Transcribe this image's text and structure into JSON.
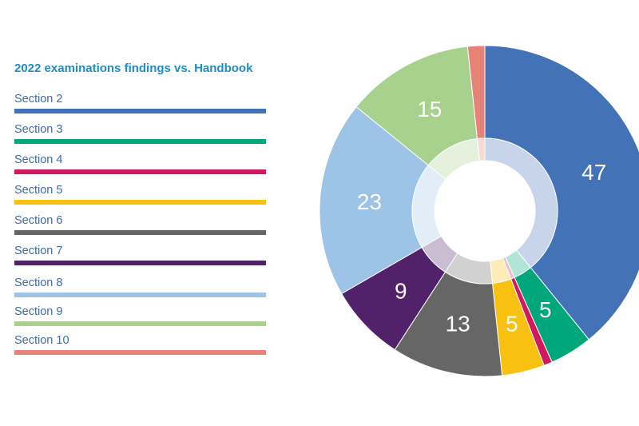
{
  "chart_data": {
    "type": "pie",
    "title": "2022 examinations findings vs. Handbook",
    "categories": [
      "Section 2",
      "Section 3",
      "Section 4",
      "Section 5",
      "Section 6",
      "Section 7",
      "Section 8",
      "Section 9",
      "Section 10"
    ],
    "values": [
      47,
      5,
      1,
      5,
      13,
      9,
      23,
      15,
      2
    ],
    "labels": [
      "47",
      "5",
      "",
      "5",
      "13",
      "9",
      "23",
      "15",
      ""
    ],
    "colors": [
      "#4472b6",
      "#00a77a",
      "#d4185e",
      "#f9c10f",
      "#666666",
      "#51226a",
      "#9dc3e6",
      "#a9d18e",
      "#e68378"
    ],
    "legend_position": "left",
    "donut": true
  }
}
